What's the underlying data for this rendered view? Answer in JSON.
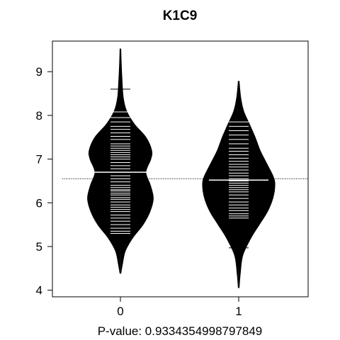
{
  "chart_data": {
    "type": "beanplot",
    "title": "K1C9",
    "xlabel": "P-value: 0.9334354998797849",
    "ylabel": "",
    "categories": [
      "0",
      "1"
    ],
    "ylim": [
      3.85,
      9.7
    ],
    "yticks": [
      4,
      5,
      6,
      7,
      8,
      9
    ],
    "overall_mean": 6.55,
    "grid": false,
    "colors": {
      "bean": "#000000",
      "lines": "#ffffff",
      "background": "#ffffff"
    },
    "series": [
      {
        "category": "0",
        "mean": 6.7,
        "range": [
          4.38,
          9.52
        ],
        "density": [
          [
            4.38,
            0.01
          ],
          [
            4.6,
            0.05
          ],
          [
            4.9,
            0.12
          ],
          [
            5.2,
            0.3
          ],
          [
            5.5,
            0.55
          ],
          [
            5.8,
            0.72
          ],
          [
            6.1,
            0.8
          ],
          [
            6.4,
            0.73
          ],
          [
            6.7,
            0.62
          ],
          [
            7.0,
            0.74
          ],
          [
            7.2,
            0.76
          ],
          [
            7.5,
            0.62
          ],
          [
            7.8,
            0.34
          ],
          [
            8.1,
            0.15
          ],
          [
            8.4,
            0.07
          ],
          [
            8.8,
            0.04
          ],
          [
            9.2,
            0.02
          ],
          [
            9.52,
            0.01
          ]
        ],
        "points": [
          5.3,
          5.35,
          5.42,
          5.5,
          5.58,
          5.65,
          5.72,
          5.8,
          5.85,
          5.9,
          5.95,
          6.02,
          6.08,
          6.12,
          6.18,
          6.22,
          6.27,
          6.3,
          6.35,
          6.4,
          6.48,
          6.55,
          6.62,
          6.7,
          6.78,
          6.85,
          6.92,
          7.0,
          7.05,
          7.1,
          7.15,
          7.2,
          7.25,
          7.3,
          7.35,
          7.45,
          7.52,
          7.6,
          7.68,
          7.75,
          7.85,
          7.95,
          8.08,
          8.6
        ]
      },
      {
        "category": "1",
        "mean": 6.52,
        "range": [
          4.05,
          8.78
        ],
        "density": [
          [
            4.05,
            0.01
          ],
          [
            4.4,
            0.04
          ],
          [
            4.8,
            0.1
          ],
          [
            5.2,
            0.3
          ],
          [
            5.5,
            0.5
          ],
          [
            5.8,
            0.7
          ],
          [
            6.1,
            0.83
          ],
          [
            6.4,
            0.88
          ],
          [
            6.6,
            0.84
          ],
          [
            6.9,
            0.68
          ],
          [
            7.2,
            0.52
          ],
          [
            7.5,
            0.4
          ],
          [
            7.8,
            0.26
          ],
          [
            8.1,
            0.12
          ],
          [
            8.4,
            0.05
          ],
          [
            8.78,
            0.01
          ]
        ],
        "points": [
          4.97,
          5.65,
          5.7,
          5.75,
          5.82,
          5.88,
          5.95,
          6.02,
          6.1,
          6.18,
          6.25,
          6.3,
          6.35,
          6.4,
          6.45,
          6.5,
          6.55,
          6.62,
          6.68,
          6.75,
          6.82,
          6.88,
          6.95,
          7.02,
          7.1,
          7.18,
          7.25,
          7.35,
          7.45,
          7.55,
          7.65,
          7.75,
          7.85
        ]
      }
    ]
  }
}
